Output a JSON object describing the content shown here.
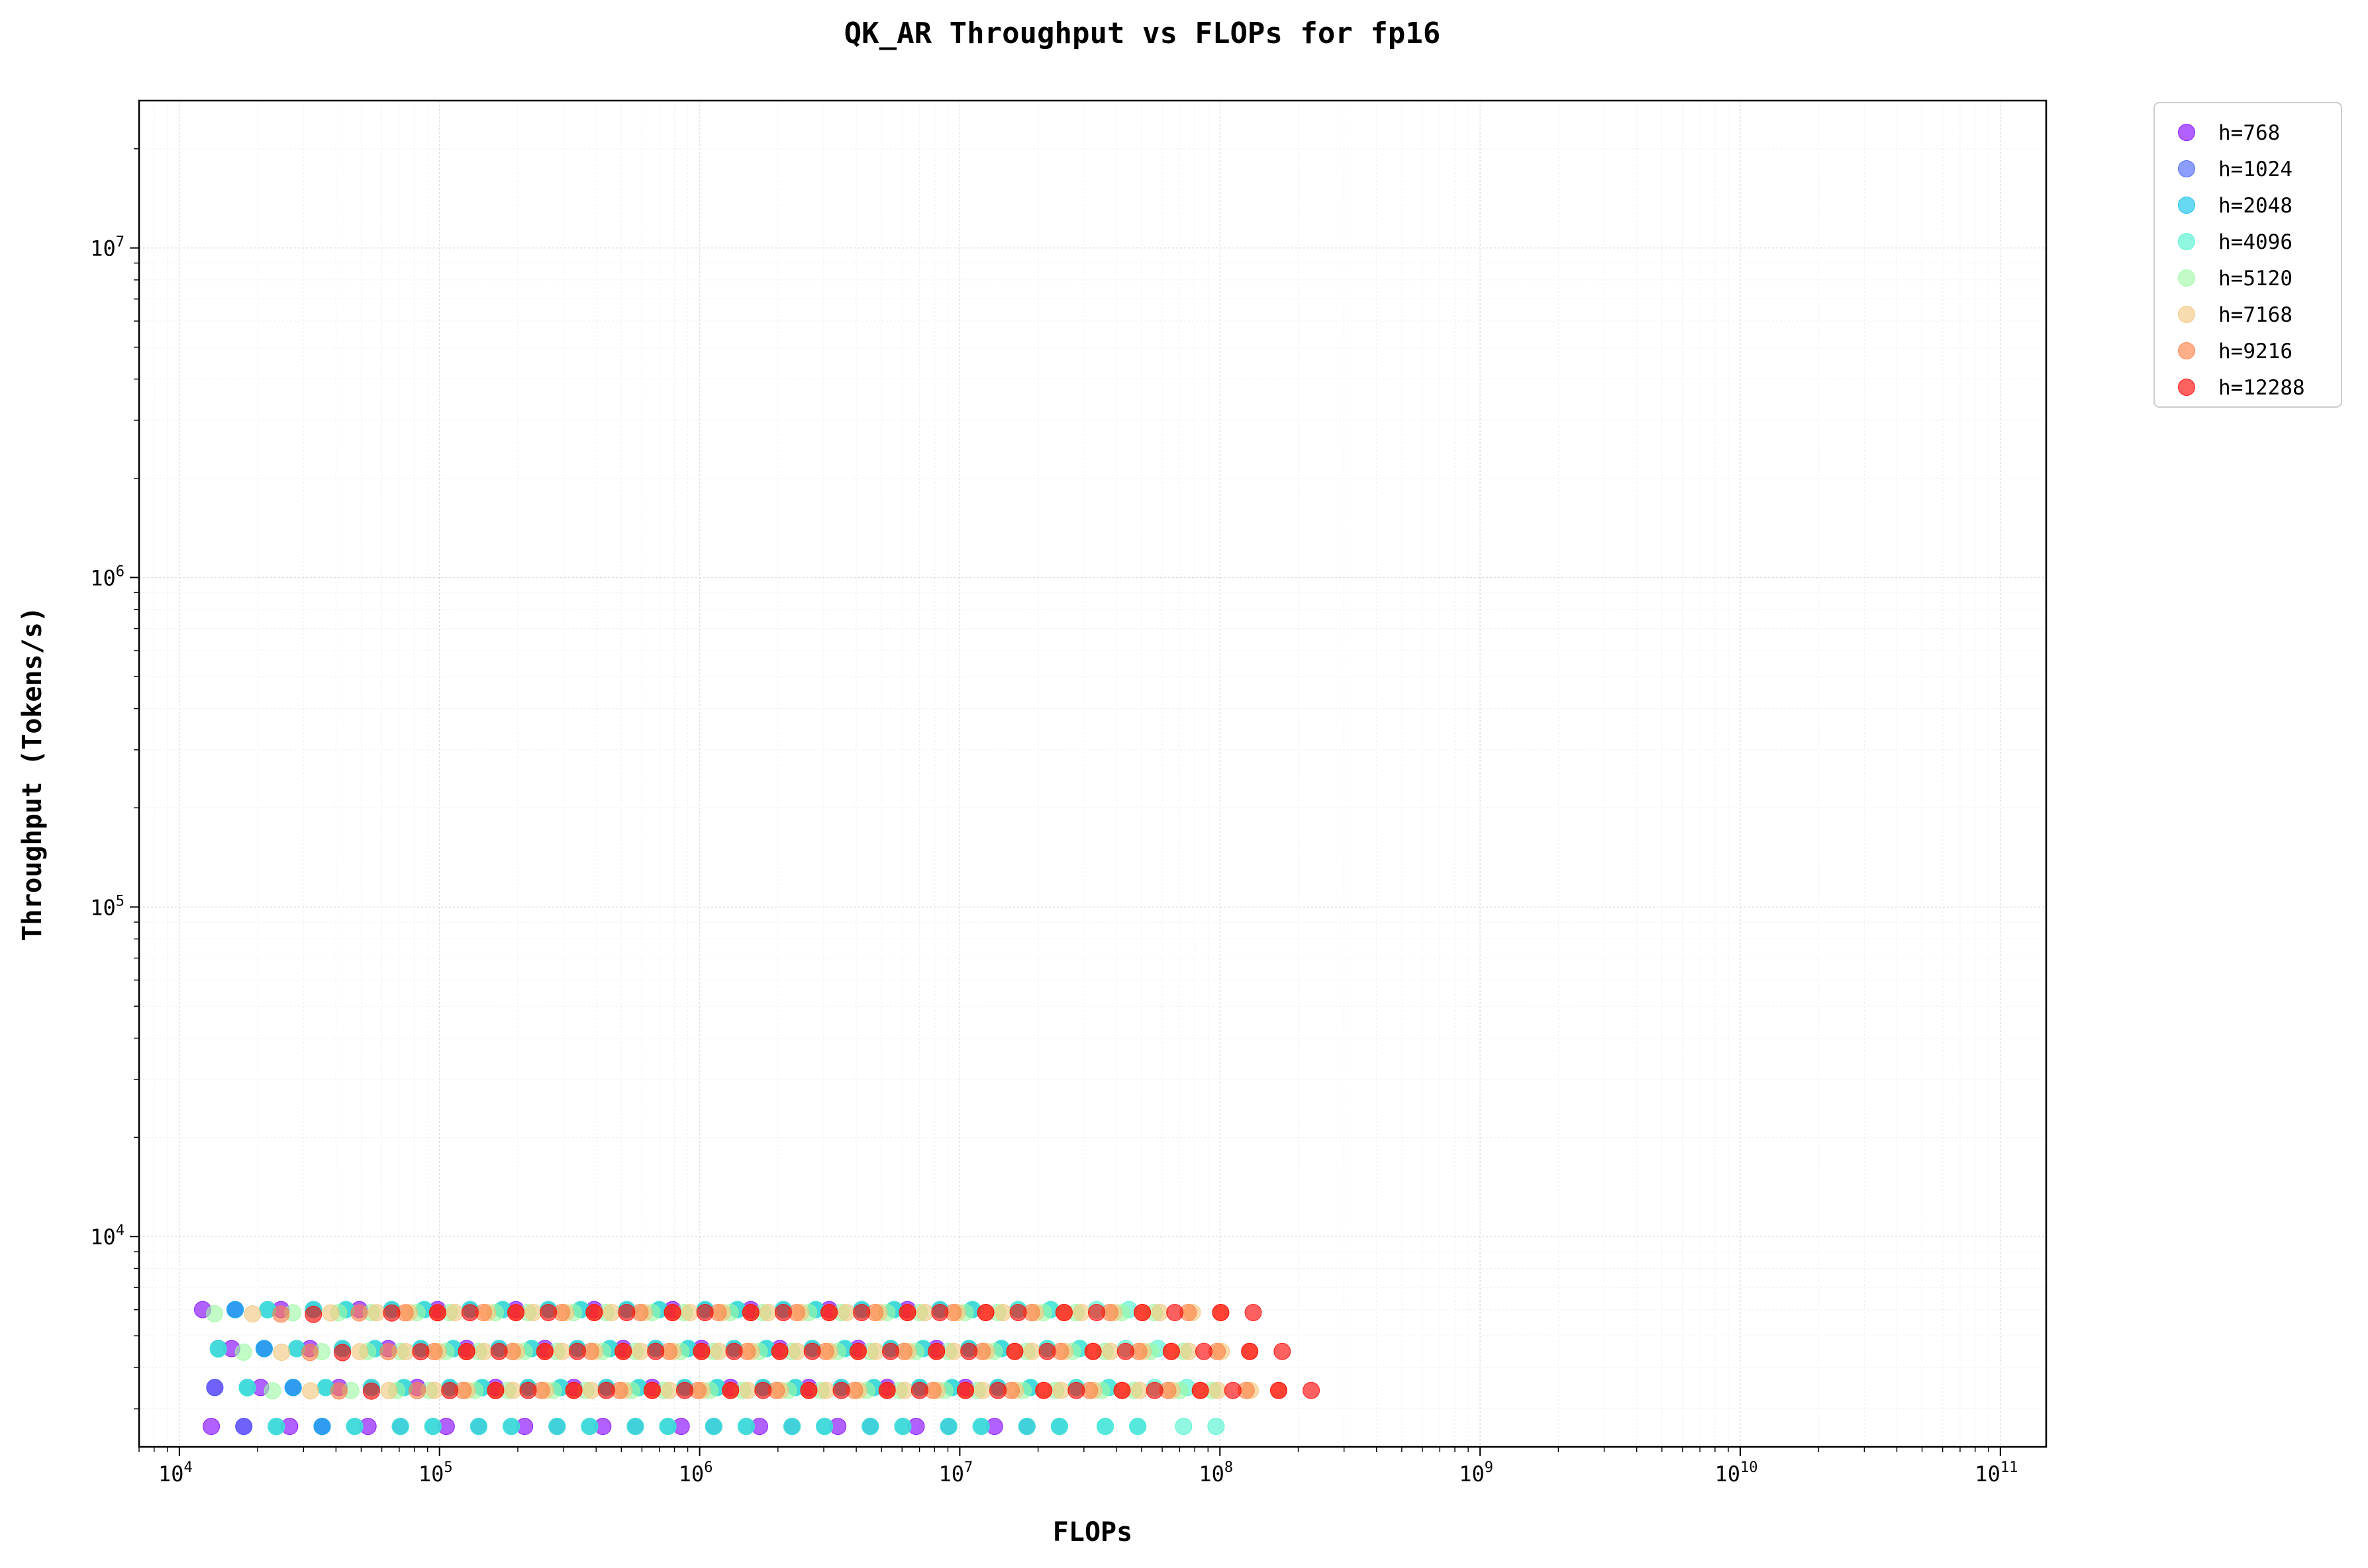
{
  "chart_data": {
    "type": "scatter",
    "title": "QK_AR Throughput vs FLOPs for fp16",
    "xlabel": "FLOPs",
    "ylabel": "Throughput (Tokens/s)",
    "xscale": "log",
    "yscale": "log",
    "xlim": [
      7000,
      150000000000
    ],
    "ylim": [
      2300,
      28000000
    ],
    "grid": true,
    "legend_position": "outside-top-right",
    "x_ticks": [
      {
        "base": "10",
        "exp": "4"
      },
      {
        "base": "10",
        "exp": "5"
      },
      {
        "base": "10",
        "exp": "6"
      },
      {
        "base": "10",
        "exp": "7"
      },
      {
        "base": "10",
        "exp": "8"
      },
      {
        "base": "10",
        "exp": "9"
      },
      {
        "base": "10",
        "exp": "10"
      },
      {
        "base": "10",
        "exp": "11"
      }
    ],
    "y_ticks": [
      {
        "base": "10",
        "exp": "4"
      },
      {
        "base": "10",
        "exp": "5"
      },
      {
        "base": "10",
        "exp": "6"
      },
      {
        "base": "10",
        "exp": "7"
      }
    ],
    "series": [
      {
        "name": "h=768",
        "hidden": 768,
        "color": "#8000ff"
      },
      {
        "name": "h=1024",
        "hidden": 1024,
        "color": "#4662f8"
      },
      {
        "name": "h=2048",
        "hidden": 2048,
        "color": "#0ac0e8"
      },
      {
        "name": "h=4096",
        "hidden": 4096,
        "color": "#4cf2ce"
      },
      {
        "name": "h=5120",
        "hidden": 5120,
        "color": "#9cf9a3"
      },
      {
        "name": "h=7168",
        "hidden": 7168,
        "color": "#f0c67d"
      },
      {
        "name": "h=9216",
        "hidden": 9216,
        "color": "#ff7e42"
      },
      {
        "name": "h=12288",
        "hidden": 12288,
        "color": "#ff0000"
      }
    ]
  }
}
